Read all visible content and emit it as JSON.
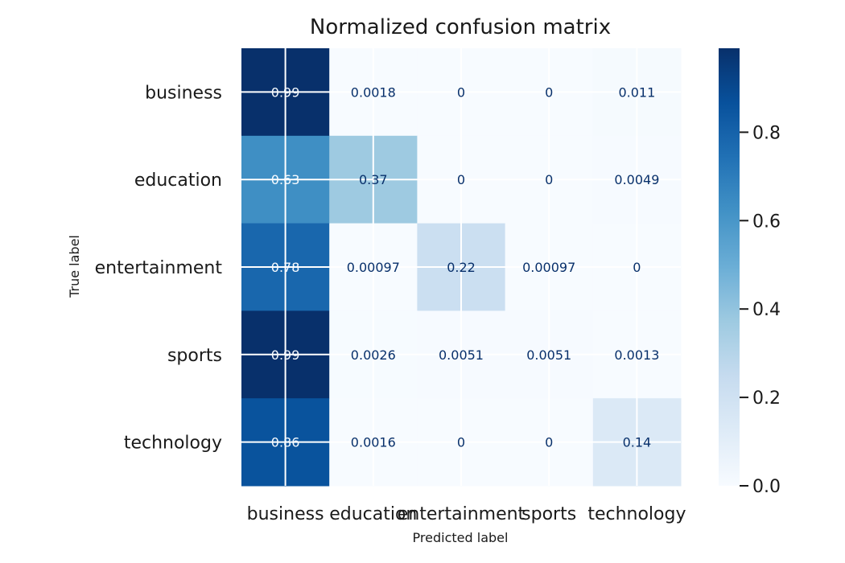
{
  "chart_data": {
    "type": "heatmap",
    "title": "Normalized confusion matrix",
    "xlabel": "Predicted label",
    "ylabel": "True label",
    "categories_x": [
      "business",
      "education",
      "entertainment",
      "sports",
      "technology"
    ],
    "categories_y": [
      "business",
      "education",
      "entertainment",
      "sports",
      "technology"
    ],
    "values": [
      [
        0.99,
        0.0018,
        0,
        0,
        0.011
      ],
      [
        0.63,
        0.37,
        0,
        0,
        0.0049
      ],
      [
        0.78,
        0.00097,
        0.22,
        0.00097,
        0
      ],
      [
        0.99,
        0.0026,
        0.0051,
        0.0051,
        0.0013
      ],
      [
        0.86,
        0.0016,
        0,
        0,
        0.14
      ]
    ],
    "labels": [
      [
        "0.99",
        "0.0018",
        "0",
        "0",
        "0.011"
      ],
      [
        "0.63",
        "0.37",
        "0",
        "0",
        "0.0049"
      ],
      [
        "0.78",
        "0.00097",
        "0.22",
        "0.00097",
        "0"
      ],
      [
        "0.99",
        "0.0026",
        "0.0051",
        "0.0051",
        "0.0013"
      ],
      [
        "0.86",
        "0.0016",
        "0",
        "0",
        "0.14"
      ]
    ],
    "colormap": "Blues",
    "colorbar": {
      "range": [
        0,
        0.99
      ],
      "ticks": [
        0.0,
        0.2,
        0.4,
        0.6,
        0.8
      ],
      "tick_labels": [
        "0.0",
        "0.2",
        "0.4",
        "0.6",
        "0.8"
      ]
    },
    "grid": true,
    "colors": {
      "low": "#f7fbff",
      "high": "#08306b",
      "text_dark": "#08306b",
      "text_light": "#f7fbff",
      "grid": "#ffffff"
    }
  }
}
